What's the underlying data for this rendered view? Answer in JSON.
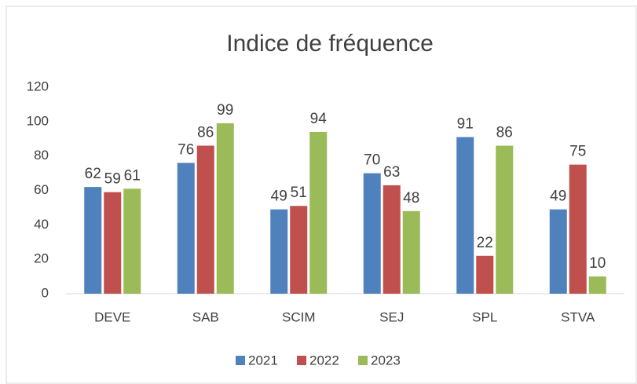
{
  "chart_data": {
    "type": "bar",
    "title": "Indice de fréquence",
    "categories": [
      "DEVE",
      "SAB",
      "SCIM",
      "SEJ",
      "SPL",
      "STVA"
    ],
    "series": [
      {
        "name": "2021",
        "color": "#4f81bd",
        "values": [
          62,
          76,
          49,
          70,
          91,
          49
        ]
      },
      {
        "name": "2022",
        "color": "#c0504d",
        "values": [
          59,
          86,
          51,
          63,
          22,
          75
        ]
      },
      {
        "name": "2023",
        "color": "#9bbb59",
        "values": [
          61,
          99,
          94,
          48,
          86,
          10
        ]
      }
    ],
    "ylim": [
      0,
      120
    ],
    "yticks": [
      0,
      20,
      40,
      60,
      80,
      100,
      120
    ],
    "grid": false,
    "legend": "bottom"
  }
}
